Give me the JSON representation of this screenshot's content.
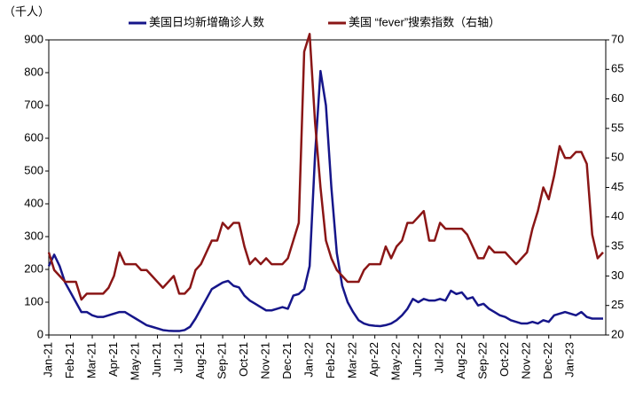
{
  "chart_data": {
    "type": "line",
    "y_label": "（千人）",
    "categories": [
      "Jan-21",
      null,
      null,
      null,
      "Feb-21",
      null,
      null,
      null,
      "Mar-21",
      null,
      null,
      null,
      "Apr-21",
      null,
      null,
      null,
      "May-21",
      null,
      null,
      null,
      "Jun-21",
      null,
      null,
      null,
      "Jul-21",
      null,
      null,
      null,
      "Aug-21",
      null,
      null,
      null,
      "Sep-21",
      null,
      null,
      null,
      "Oct-21",
      null,
      null,
      null,
      "Nov-21",
      null,
      null,
      null,
      "Dec-21",
      null,
      null,
      null,
      "Jan-22",
      null,
      null,
      null,
      "Feb-22",
      null,
      null,
      null,
      "Mar-22",
      null,
      null,
      null,
      "Apr-22",
      null,
      null,
      null,
      "May-22",
      null,
      null,
      null,
      "Jun-22",
      null,
      null,
      null,
      "Jul-22",
      null,
      null,
      null,
      "Aug-22",
      null,
      null,
      null,
      "Sep-22",
      null,
      null,
      null,
      "Oct-22",
      null,
      null,
      null,
      "Nov-22",
      null,
      null,
      null,
      "Dec-22",
      null,
      null,
      null,
      "Jan-23",
      null,
      null,
      null,
      null,
      null,
      null
    ],
    "series": [
      {
        "name": "美国日均新增确诊人数",
        "color": "#16168a",
        "axis": "y",
        "values": [
          210,
          245,
          210,
          160,
          130,
          100,
          70,
          70,
          60,
          55,
          55,
          60,
          65,
          70,
          70,
          60,
          50,
          40,
          30,
          25,
          20,
          15,
          13,
          12,
          12,
          15,
          25,
          50,
          80,
          110,
          140,
          150,
          160,
          165,
          150,
          145,
          120,
          105,
          95,
          85,
          75,
          75,
          80,
          85,
          80,
          120,
          125,
          140,
          210,
          550,
          805,
          700,
          450,
          250,
          150,
          100,
          70,
          45,
          35,
          30,
          28,
          27,
          30,
          35,
          45,
          60,
          80,
          110,
          100,
          110,
          105,
          105,
          110,
          105,
          135,
          125,
          130,
          110,
          115,
          90,
          95,
          80,
          70,
          60,
          55,
          45,
          40,
          35,
          35,
          40,
          35,
          45,
          40,
          60,
          65,
          70,
          65,
          60,
          70,
          55,
          50,
          50,
          50
        ]
      },
      {
        "name": "美国 “fever”搜索指数（右轴）",
        "color": "#8a1616",
        "axis": "y2",
        "values": [
          34,
          31,
          30,
          29,
          29,
          29,
          26,
          27,
          27,
          27,
          27,
          28,
          30,
          34,
          32,
          32,
          32,
          31,
          31,
          30,
          29,
          28,
          29,
          30,
          27,
          27,
          28,
          31,
          32,
          34,
          36,
          36,
          39,
          38,
          39,
          39,
          35,
          32,
          33,
          32,
          33,
          32,
          32,
          32,
          33,
          36,
          39,
          68,
          71,
          56,
          45,
          36,
          33,
          31,
          30,
          29,
          29,
          29,
          31,
          32,
          32,
          32,
          35,
          33,
          35,
          36,
          39,
          39,
          40,
          41,
          36,
          36,
          39,
          38,
          38,
          38,
          38,
          37,
          35,
          33,
          33,
          35,
          34,
          34,
          34,
          33,
          32,
          33,
          34,
          38,
          41,
          45,
          43,
          47,
          52,
          50,
          50,
          51,
          51,
          49,
          37,
          33,
          34
        ]
      }
    ],
    "ylim": [
      0,
      900
    ],
    "yticks": [
      0,
      100,
      200,
      300,
      400,
      500,
      600,
      700,
      800,
      900
    ],
    "y2lim": [
      20,
      70
    ],
    "y2ticks": [
      20,
      25,
      30,
      35,
      40,
      45,
      50,
      55,
      60,
      65,
      70
    ]
  }
}
